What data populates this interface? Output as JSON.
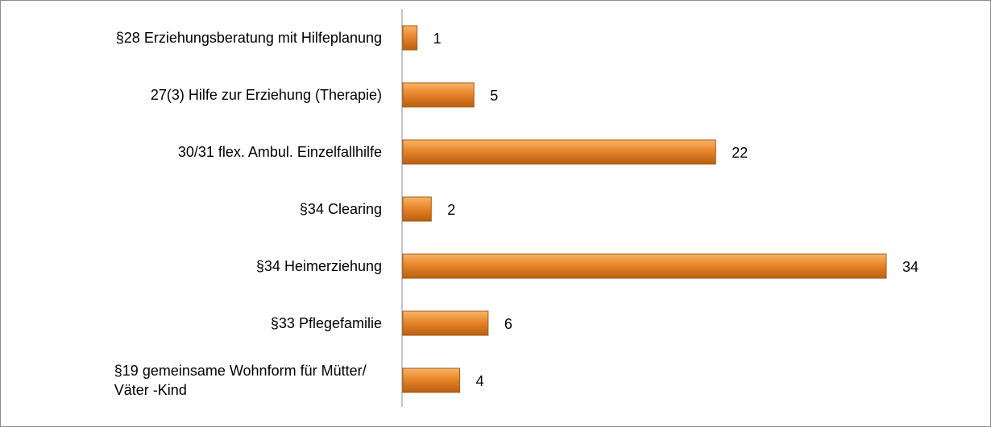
{
  "chart_data": {
    "type": "bar",
    "orientation": "horizontal",
    "categories": [
      "§28 Erziehungsberatung mit Hilfeplanung",
      "27(3) Hilfe zur Erziehung (Therapie)",
      "30/31 flex. Ambul. Einzelfallhilfe",
      "§34 Clearing",
      "§34 Heimerziehung",
      "§33 Pflegefamilie",
      "§19 gemeinsame Wohnform für Mütter/ Väter -Kind"
    ],
    "values": [
      1,
      5,
      22,
      2,
      34,
      6,
      4
    ],
    "color": "#e8862a"
  }
}
